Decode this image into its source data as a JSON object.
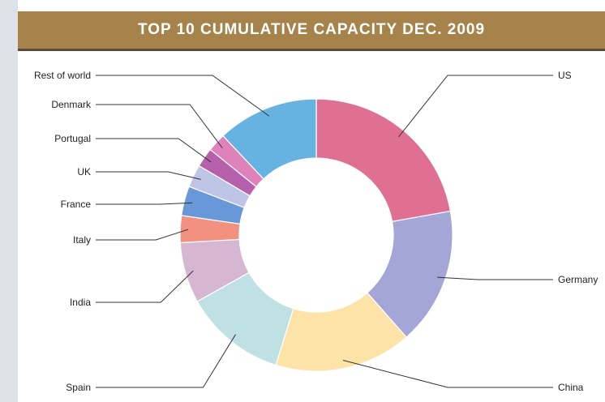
{
  "header": {
    "title": "TOP 10 CUMULATIVE CAPACITY DEC. 2009"
  },
  "chart_data": {
    "type": "pie",
    "donut": true,
    "title": "TOP 10 CUMULATIVE CAPACITY DEC. 2009",
    "legend": "none",
    "slices": [
      {
        "label": "US",
        "value": 22.2,
        "color": "#e07093"
      },
      {
        "label": "Germany",
        "value": 16.3,
        "color": "#a3a6d6"
      },
      {
        "label": "China",
        "value": 16.3,
        "color": "#fde3a7"
      },
      {
        "label": "Spain",
        "value": 12.1,
        "color": "#bfe1e4"
      },
      {
        "label": "India",
        "value": 7.2,
        "color": "#d7b6d2"
      },
      {
        "label": "Italy",
        "value": 3.2,
        "color": "#f29180"
      },
      {
        "label": "France",
        "value": 3.5,
        "color": "#6898d8"
      },
      {
        "label": "UK",
        "value": 2.7,
        "color": "#bdc4e6"
      },
      {
        "label": "Portugal",
        "value": 2.3,
        "color": "#b660ab"
      },
      {
        "label": "Denmark",
        "value": 2.2,
        "color": "#dd82bb"
      },
      {
        "label": "Rest of world",
        "value": 12.0,
        "color": "#66b3e2"
      }
    ]
  }
}
